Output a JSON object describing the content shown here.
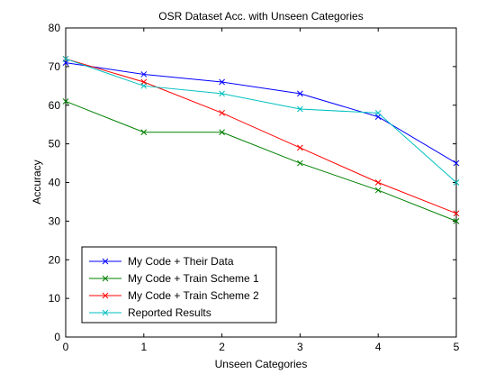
{
  "chart_data": {
    "type": "line",
    "title": "OSR Dataset Acc. with Unseen Categories",
    "xlabel": "Unseen Categories",
    "ylabel": "Accuracy",
    "xlim": [
      0,
      5
    ],
    "ylim": [
      0,
      80
    ],
    "xticks": [
      "0",
      "1",
      "2",
      "3",
      "4",
      "5"
    ],
    "yticks": [
      "0",
      "10",
      "20",
      "30",
      "40",
      "50",
      "60",
      "70",
      "80"
    ],
    "grid": false,
    "legend_position": "bottom-left",
    "x": [
      0,
      1,
      2,
      3,
      4,
      5
    ],
    "series": [
      {
        "name": "My Code + Their Data",
        "color": "#0000ff",
        "marker": "x",
        "values": [
          71,
          68,
          66,
          63,
          57,
          45
        ]
      },
      {
        "name": "My Code + Train Scheme 1",
        "color": "#008000",
        "marker": "x",
        "values": [
          61,
          53,
          53,
          45,
          38,
          30
        ]
      },
      {
        "name": "My Code + Train Scheme 2",
        "color": "#ff0000",
        "marker": "x",
        "values": [
          72,
          66,
          58,
          49,
          40,
          32
        ]
      },
      {
        "name": "Reported Results",
        "color": "#00bfbf",
        "marker": "x",
        "values": [
          72,
          65,
          63,
          59,
          58,
          40
        ]
      }
    ]
  }
}
